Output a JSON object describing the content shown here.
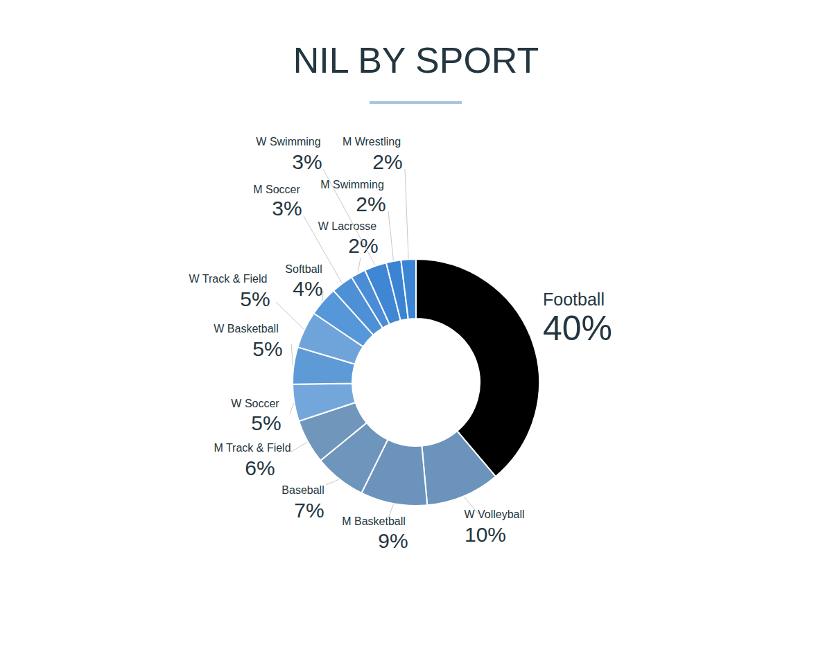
{
  "chart_data": {
    "type": "pie",
    "title": "NIL BY SPORT",
    "categories": [
      "Football",
      "W Volleyball",
      "M Basketball",
      "Baseball",
      "M Track & Field",
      "W Soccer",
      "W Basketball",
      "W Track & Field",
      "Softball",
      "M Soccer",
      "W Lacrosse",
      "W Swimming",
      "M Swimming",
      "M Wrestling"
    ],
    "values": [
      40,
      10,
      9,
      7,
      6,
      5,
      5,
      5,
      4,
      3,
      2,
      3,
      2,
      2
    ],
    "value_labels": [
      "40%",
      "10%",
      "9%",
      "7%",
      "6%",
      "5%",
      "5%",
      "5%",
      "4%",
      "3%",
      "2%",
      "3%",
      "2%",
      "2%"
    ],
    "data_labels": true,
    "colors": [
      "#000000",
      "#6b93bb",
      "#6b93bb",
      "#6e95bc",
      "#7096bc",
      "#73a7dc",
      "#5e9ad6",
      "#6fa4da",
      "#5597d8",
      "#4d90d6",
      "#4a8cd6",
      "#3f86d4",
      "#3b84d4",
      "#3c85d6"
    ]
  }
}
